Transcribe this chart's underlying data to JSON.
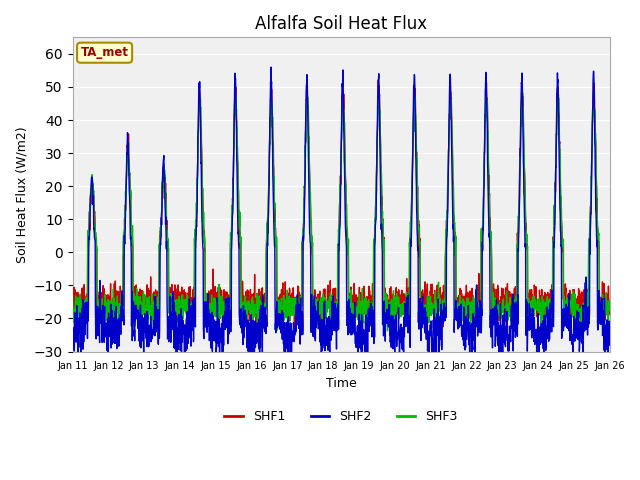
{
  "title": "Alfalfa Soil Heat Flux",
  "ylabel": "Soil Heat Flux (W/m2)",
  "xlabel": "Time",
  "ylim": [
    -30,
    65
  ],
  "yticks": [
    -30,
    -20,
    -10,
    0,
    10,
    20,
    30,
    40,
    50,
    60
  ],
  "plot_bg_color": "#f0f0f0",
  "fig_bg_color": "#ffffff",
  "line_colors": {
    "SHF1": "#cc0000",
    "SHF2": "#0000cc",
    "SHF3": "#00bb00"
  },
  "line_width": 1.0,
  "legend_label": "TA_met",
  "xtick_labels": [
    "Jan 11",
    "Jan 12",
    "Jan 13",
    "Jan 14",
    "Jan 15",
    "Jan 16",
    "Jan 17",
    "Jan 18",
    "Jan 19",
    "Jan 20",
    "Jan 21",
    "Jan 22",
    "Jan 23",
    "Jan 24",
    "Jan 25",
    "Jan 26"
  ],
  "days": 15,
  "pts_per_day": 144
}
